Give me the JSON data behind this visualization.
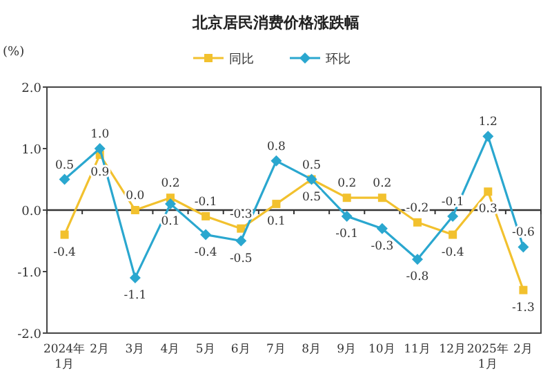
{
  "chart_data": {
    "type": "line",
    "title": "北京居民消费价格涨跌幅",
    "ylabel": "(%)",
    "categories": [
      "2024年\n1月",
      "2月",
      "3月",
      "4月",
      "5月",
      "6月",
      "7月",
      "8月",
      "9月",
      "10月",
      "11月",
      "12月",
      "2025年\n1月",
      "2月"
    ],
    "series": [
      {
        "name": "同比",
        "color": "#f2c12e",
        "marker": "square",
        "values": [
          -0.4,
          0.9,
          0.0,
          0.2,
          -0.1,
          -0.3,
          0.1,
          0.5,
          0.2,
          0.2,
          -0.2,
          -0.4,
          0.3,
          -1.3
        ],
        "value_labels": [
          "-0.4",
          "0.9",
          "0.0",
          "0.2",
          "-0.1",
          "-0.3",
          "0.1",
          "0.5",
          "0.2",
          "0.2",
          "-0.2",
          "-0.4",
          "0.3",
          "-1.3"
        ]
      },
      {
        "name": "环比",
        "color": "#2aa7cf",
        "marker": "diamond",
        "values": [
          0.5,
          1.0,
          -1.1,
          0.1,
          -0.4,
          -0.5,
          0.8,
          0.5,
          -0.1,
          -0.3,
          -0.8,
          -0.1,
          1.2,
          -0.6
        ],
        "value_labels": [
          "0.5",
          "1.0",
          "-1.1",
          "0.1",
          "-0.4",
          "-0.5",
          "0.8",
          "0.5",
          "-0.1",
          "-0.3",
          "-0.8",
          "-0.1",
          "1.2",
          "-0.6"
        ]
      }
    ],
    "ylim": [
      -2,
      2
    ],
    "yticks": [
      {
        "value": 2,
        "label": "2.0"
      },
      {
        "value": 1,
        "label": "1.0"
      },
      {
        "value": 0,
        "label": "0.0"
      },
      {
        "value": -1,
        "label": "-1.0"
      },
      {
        "value": -2,
        "label": "-2.0"
      }
    ],
    "grid": false,
    "ref_lines": [
      {
        "axis": "y",
        "value": 0,
        "color": "#333333"
      }
    ],
    "legend": "top",
    "line_style": "solid"
  }
}
